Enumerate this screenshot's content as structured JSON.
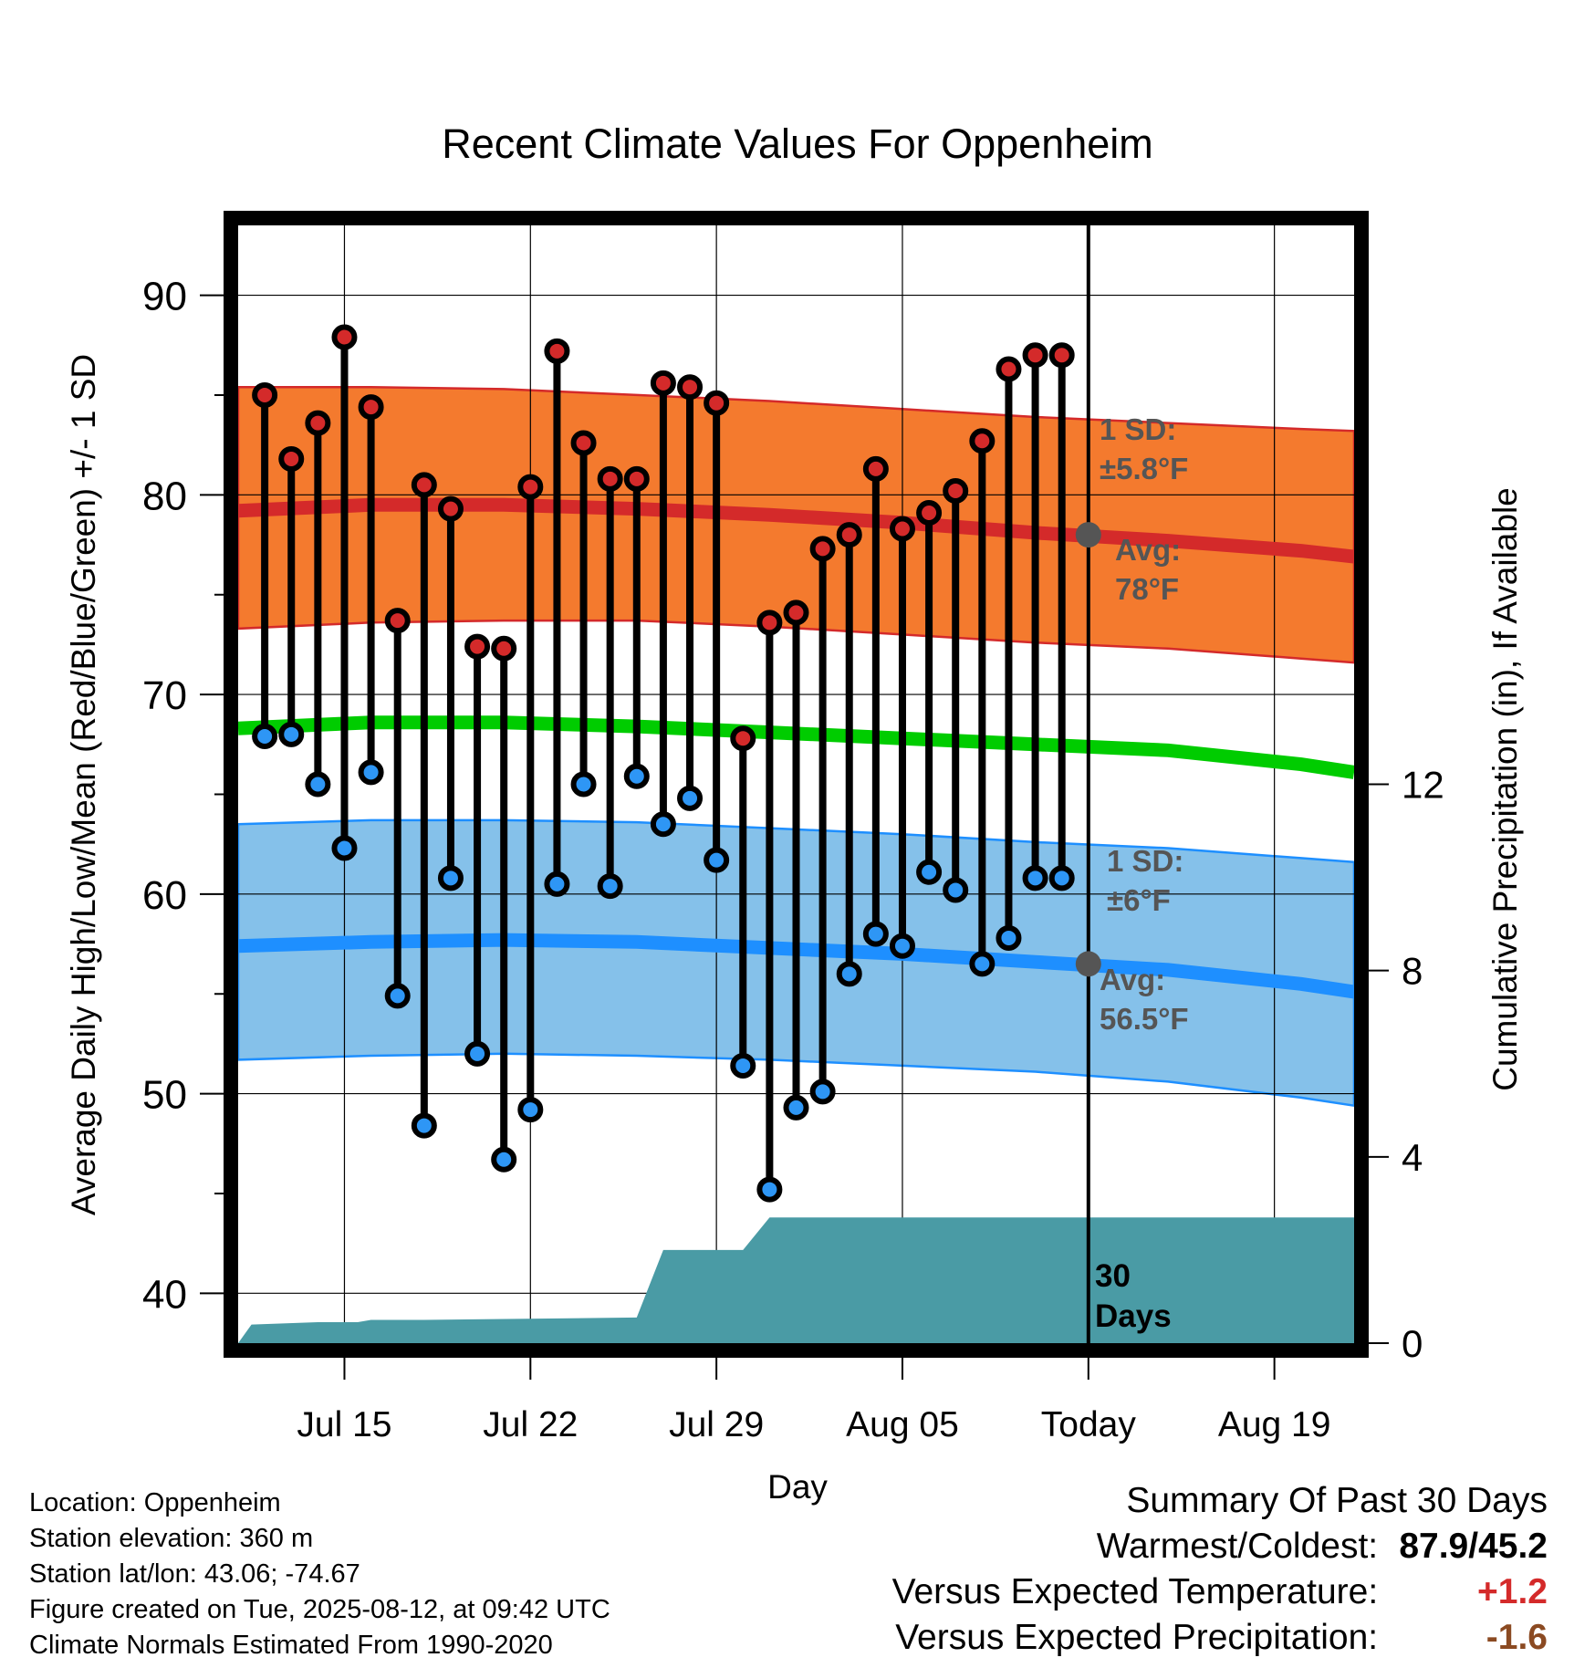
{
  "chart_data": {
    "type": "line",
    "title": "Recent Climate Values For Oppenheim",
    "xlabel": "Day",
    "ylabel": "Average Daily High/Low/Mean (Red/Blue/Green) +/- 1 SD",
    "ylabel_right": "Cumulative Precipitation (in), If Available",
    "ylim": [
      37.5,
      93.5
    ],
    "ylim_right": [
      0,
      24
    ],
    "yticks": [
      40,
      50,
      60,
      70,
      80,
      90
    ],
    "yticks_right": [
      0,
      4,
      8,
      12
    ],
    "xlim": [
      "2025-07-11",
      "2025-08-22"
    ],
    "xticks": [
      {
        "date": "2025-07-15",
        "label": "Jul 15"
      },
      {
        "date": "2025-07-22",
        "label": "Jul 22"
      },
      {
        "date": "2025-07-29",
        "label": "Jul 29"
      },
      {
        "date": "2025-08-05",
        "label": "Aug 05"
      },
      {
        "date": "2025-08-12",
        "label": "Today"
      },
      {
        "date": "2025-08-19",
        "label": "Aug 19"
      }
    ],
    "today": "2025-08-12",
    "today_label": [
      "30",
      "Days"
    ],
    "grid": true,
    "normals": {
      "dates": [
        "2025-07-11",
        "2025-07-16",
        "2025-07-21",
        "2025-07-26",
        "2025-07-31",
        "2025-08-05",
        "2025-08-10",
        "2025-08-15",
        "2025-08-20",
        "2025-08-22"
      ],
      "high_mean": [
        79.2,
        79.5,
        79.5,
        79.3,
        79.0,
        78.6,
        78.1,
        77.7,
        77.2,
        76.9
      ],
      "high_upper": [
        85.4,
        85.4,
        85.3,
        85.0,
        84.7,
        84.3,
        83.9,
        83.6,
        83.3,
        83.2
      ],
      "high_lower": [
        73.3,
        73.6,
        73.7,
        73.7,
        73.4,
        73.0,
        72.6,
        72.3,
        71.8,
        71.6
      ],
      "low_mean": [
        57.4,
        57.6,
        57.7,
        57.6,
        57.3,
        57.0,
        56.6,
        56.2,
        55.5,
        55.1
      ],
      "low_upper": [
        63.5,
        63.7,
        63.7,
        63.6,
        63.3,
        63.0,
        62.6,
        62.3,
        61.8,
        61.6
      ],
      "low_lower": [
        51.7,
        51.9,
        52.0,
        51.9,
        51.7,
        51.4,
        51.1,
        50.6,
        49.8,
        49.4
      ],
      "avg_mean": [
        68.3,
        68.6,
        68.6,
        68.4,
        68.1,
        67.8,
        67.5,
        67.2,
        66.5,
        66.1
      ]
    },
    "annotations": {
      "high_sd_label": [
        "1 SD:",
        "±5.8°F"
      ],
      "high_avg_label": [
        "Avg:",
        "78°F"
      ],
      "low_sd_label": [
        "1 SD:",
        "±6°F"
      ],
      "low_avg_label": [
        "Avg:",
        "56.5°F"
      ],
      "high_avg_value": 78,
      "low_avg_value": 56.5
    },
    "daily": {
      "dates": [
        "2025-07-12",
        "2025-07-13",
        "2025-07-14",
        "2025-07-15",
        "2025-07-16",
        "2025-07-17",
        "2025-07-18",
        "2025-07-19",
        "2025-07-20",
        "2025-07-21",
        "2025-07-22",
        "2025-07-23",
        "2025-07-24",
        "2025-07-25",
        "2025-07-26",
        "2025-07-27",
        "2025-07-28",
        "2025-07-29",
        "2025-07-30",
        "2025-07-31",
        "2025-08-01",
        "2025-08-02",
        "2025-08-03",
        "2025-08-04",
        "2025-08-05",
        "2025-08-06",
        "2025-08-07",
        "2025-08-08",
        "2025-08-09",
        "2025-08-10",
        "2025-08-11"
      ],
      "high": [
        85.0,
        81.8,
        83.6,
        87.9,
        84.4,
        73.7,
        80.5,
        79.3,
        72.4,
        72.3,
        80.4,
        87.2,
        82.6,
        80.8,
        80.8,
        85.6,
        85.4,
        84.6,
        67.8,
        73.6,
        74.1,
        77.3,
        78.0,
        81.3,
        78.3,
        79.1,
        80.2,
        82.7,
        86.3,
        87.0,
        87.0
      ],
      "low": [
        67.9,
        68.0,
        65.5,
        62.3,
        66.1,
        54.9,
        48.4,
        60.8,
        52.0,
        46.7,
        49.2,
        60.5,
        65.5,
        60.4,
        65.9,
        63.5,
        64.8,
        61.7,
        51.4,
        45.2,
        49.3,
        50.1,
        56.0,
        58.0,
        57.4,
        61.1,
        60.2,
        56.5,
        57.8,
        60.8,
        60.8
      ]
    },
    "precip_cumulative": {
      "dates": [
        "2025-07-11",
        "2025-07-11T12",
        "2025-07-14",
        "2025-07-15T12",
        "2025-07-16",
        "2025-07-18",
        "2025-07-26",
        "2025-07-27",
        "2025-07-29",
        "2025-07-30",
        "2025-07-31",
        "2025-08-22"
      ],
      "values": [
        0.0,
        0.4,
        0.45,
        0.45,
        0.5,
        0.5,
        0.55,
        2.0,
        2.0,
        2.0,
        2.7,
        2.7
      ]
    }
  },
  "info": {
    "location": "Location: Oppenheim",
    "elevation": "Station elevation: 360 m",
    "latlon": "Station lat/lon: 43.06; -74.67",
    "created": "Figure created on Tue, 2025-08-12, at 09:42 UTC",
    "normals": "Climate Normals Estimated From 1990-2020"
  },
  "summary": {
    "title": "Summary Of Past 30 Days",
    "warmest_label": "Warmest/Coldest:",
    "warmest_value": "87.9/45.2",
    "temp_label": "Versus Expected Temperature:",
    "temp_value": "+1.2",
    "precip_label": "Versus Expected Precipitation:",
    "precip_value": "-1.6"
  },
  "colors": {
    "high_band": "#f47a2e",
    "high_mean": "#d42a2a",
    "low_band": "#85c1ea",
    "low_mean": "#1e8fff",
    "avg_mean": "#00cc00",
    "precip": "#4a9ba5",
    "high_marker": "#d42a2a",
    "low_marker": "#2e96f5",
    "annotation": "#555555"
  }
}
